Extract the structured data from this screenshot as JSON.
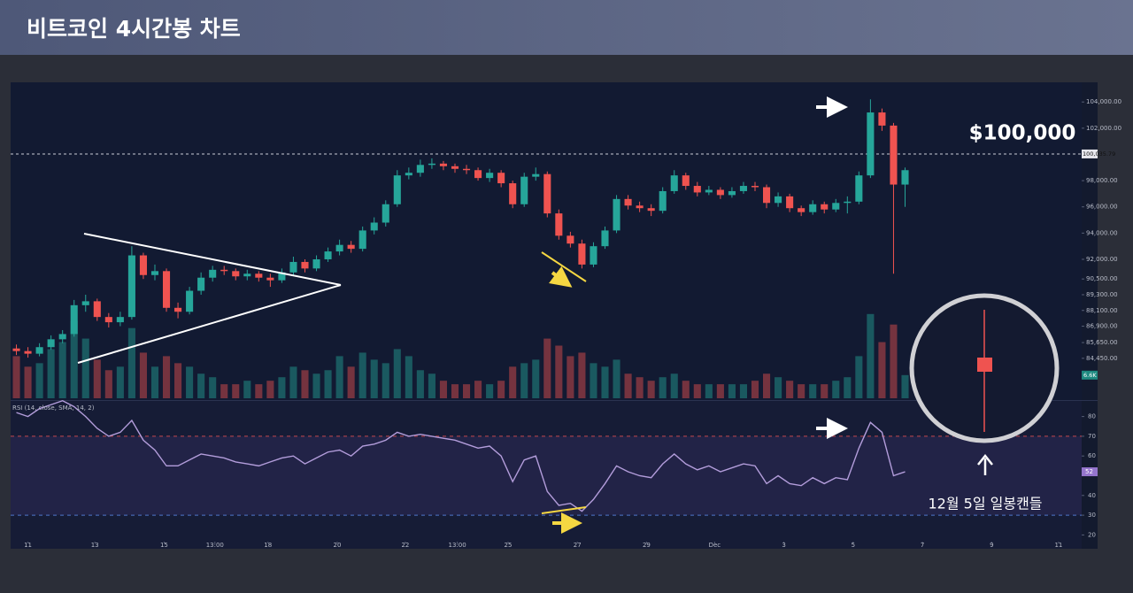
{
  "header": {
    "title": "비트코인 4시간봉 차트"
  },
  "chart_data": {
    "type": "candlestick",
    "xlim": [
      -0.5,
      92.3
    ],
    "xticks": [
      {
        "value": 1.0,
        "label": "11"
      },
      {
        "value": 6.8,
        "label": "13"
      },
      {
        "value": 12.8,
        "label": "15"
      },
      {
        "value": 17.2,
        "label": "13:00"
      },
      {
        "value": 21.8,
        "label": "18"
      },
      {
        "value": 27.8,
        "label": "20"
      },
      {
        "value": 33.7,
        "label": "22"
      },
      {
        "value": 38.2,
        "label": "13:00"
      },
      {
        "value": 42.6,
        "label": "25"
      },
      {
        "value": 48.6,
        "label": "27"
      },
      {
        "value": 54.6,
        "label": "29"
      },
      {
        "value": 60.5,
        "label": "Dec"
      },
      {
        "value": 66.5,
        "label": "3"
      },
      {
        "value": 72.5,
        "label": "5"
      },
      {
        "value": 78.5,
        "label": "7"
      },
      {
        "value": 84.5,
        "label": "9"
      },
      {
        "value": 90.3,
        "label": "11"
      }
    ],
    "ylim": [
      81400,
      105500
    ],
    "yticks": [
      {
        "value": 104000,
        "label": "104,000.00"
      },
      {
        "value": 102000,
        "label": "102,000.00"
      },
      {
        "value": 98000,
        "label": "98,000.00"
      },
      {
        "value": 96000,
        "label": "96,000.00"
      },
      {
        "value": 94000,
        "label": "94,000.00"
      },
      {
        "value": 92000,
        "label": "92,000.00"
      },
      {
        "value": 90500,
        "label": "90,500.00"
      },
      {
        "value": 89300,
        "label": "89,300.00"
      },
      {
        "value": 88100,
        "label": "88,100.00"
      },
      {
        "value": 86900,
        "label": "86,900.00"
      },
      {
        "value": 85650,
        "label": "85,650.00"
      },
      {
        "value": 84450,
        "label": "84,450.00"
      }
    ],
    "colors": {
      "up": "#26a69a",
      "down": "#ef5350"
    },
    "ohlc": [
      [
        85200,
        85500,
        84700,
        85000
      ],
      [
        85000,
        85300,
        84500,
        84800
      ],
      [
        84800,
        85600,
        84600,
        85300
      ],
      [
        85300,
        86200,
        85100,
        85900
      ],
      [
        85900,
        86600,
        85600,
        86300
      ],
      [
        86300,
        88900,
        86100,
        88500
      ],
      [
        88500,
        89300,
        88000,
        88800
      ],
      [
        88800,
        89000,
        87300,
        87600
      ],
      [
        87600,
        87900,
        86800,
        87200
      ],
      [
        87200,
        88000,
        86900,
        87600
      ],
      [
        87600,
        93000,
        87400,
        92300
      ],
      [
        92300,
        92500,
        90500,
        90800
      ],
      [
        90800,
        91600,
        90400,
        91100
      ],
      [
        91100,
        91300,
        88000,
        88300
      ],
      [
        88300,
        88700,
        87500,
        88000
      ],
      [
        88000,
        89900,
        87800,
        89600
      ],
      [
        89600,
        91000,
        89300,
        90600
      ],
      [
        90600,
        91500,
        90300,
        91200
      ],
      [
        91200,
        91500,
        90800,
        91100
      ],
      [
        91100,
        91300,
        90400,
        90700
      ],
      [
        90700,
        91200,
        90400,
        90900
      ],
      [
        90900,
        91100,
        90300,
        90600
      ],
      [
        90600,
        90900,
        89900,
        90400
      ],
      [
        90400,
        91300,
        90200,
        91000
      ],
      [
        91000,
        92200,
        90800,
        91800
      ],
      [
        91800,
        92000,
        91000,
        91300
      ],
      [
        91300,
        92300,
        91100,
        92000
      ],
      [
        92000,
        92900,
        91800,
        92600
      ],
      [
        92600,
        93500,
        92300,
        93100
      ],
      [
        93100,
        93400,
        92500,
        92800
      ],
      [
        92800,
        94500,
        92600,
        94200
      ],
      [
        94200,
        95200,
        93900,
        94800
      ],
      [
        94800,
        96500,
        94500,
        96200
      ],
      [
        96200,
        98800,
        96000,
        98400
      ],
      [
        98400,
        99000,
        98100,
        98600
      ],
      [
        98600,
        99600,
        98300,
        99200
      ],
      [
        99200,
        99700,
        98900,
        99300
      ],
      [
        99300,
        99500,
        98800,
        99100
      ],
      [
        99100,
        99300,
        98600,
        98900
      ],
      [
        98900,
        99200,
        98500,
        98800
      ],
      [
        98800,
        99000,
        98000,
        98200
      ],
      [
        98200,
        98900,
        97900,
        98600
      ],
      [
        98600,
        98800,
        97500,
        97800
      ],
      [
        97800,
        98000,
        95900,
        96200
      ],
      [
        96200,
        98600,
        96000,
        98300
      ],
      [
        98300,
        99000,
        98000,
        98500
      ],
      [
        98500,
        98700,
        95200,
        95500
      ],
      [
        95500,
        95800,
        93500,
        93800
      ],
      [
        93800,
        94100,
        92900,
        93200
      ],
      [
        93200,
        93500,
        91300,
        91600
      ],
      [
        91600,
        93300,
        91400,
        93000
      ],
      [
        93000,
        94500,
        92800,
        94200
      ],
      [
        94200,
        96900,
        94000,
        96600
      ],
      [
        96600,
        96900,
        95800,
        96100
      ],
      [
        96100,
        96400,
        95600,
        95900
      ],
      [
        95900,
        96200,
        95300,
        95700
      ],
      [
        95700,
        97500,
        95500,
        97200
      ],
      [
        97200,
        98800,
        97000,
        98400
      ],
      [
        98400,
        98600,
        97300,
        97600
      ],
      [
        97600,
        97900,
        96800,
        97100
      ],
      [
        97100,
        97600,
        96900,
        97300
      ],
      [
        97300,
        97500,
        96600,
        96900
      ],
      [
        96900,
        97500,
        96700,
        97200
      ],
      [
        97200,
        97900,
        97000,
        97600
      ],
      [
        97600,
        97900,
        97200,
        97500
      ],
      [
        97500,
        97700,
        95900,
        96300
      ],
      [
        96300,
        97100,
        96000,
        96800
      ],
      [
        96800,
        97000,
        95600,
        95900
      ],
      [
        95900,
        96100,
        95300,
        95600
      ],
      [
        95600,
        96500,
        95400,
        96200
      ],
      [
        96200,
        96400,
        95500,
        95800
      ],
      [
        95800,
        96600,
        95600,
        96300
      ],
      [
        96300,
        96800,
        95500,
        96400
      ],
      [
        96400,
        98700,
        96200,
        98400
      ],
      [
        98400,
        104200,
        98200,
        103200
      ],
      [
        103200,
        103500,
        101800,
        102200
      ],
      [
        102200,
        102400,
        90900,
        97700
      ],
      [
        97700,
        99000,
        96000,
        98800
      ]
    ],
    "price_line": {
      "value": 100035.79,
      "label": "100,035.79"
    },
    "annotations": [
      "$100,000",
      "12월 5일 일봉캔들"
    ],
    "volume": {
      "vlim": [
        0,
        90000
      ],
      "last_value_label": "6.6K",
      "values": [
        12000,
        9000,
        10000,
        14000,
        16000,
        22000,
        17000,
        11000,
        8000,
        9000,
        20000,
        13000,
        9000,
        12000,
        10000,
        9000,
        7000,
        6000,
        4000,
        4000,
        5000,
        4000,
        5000,
        6000,
        9000,
        8000,
        7000,
        8000,
        12000,
        9000,
        13000,
        11000,
        10000,
        14000,
        12000,
        8000,
        7000,
        5000,
        4000,
        4000,
        5000,
        4000,
        5000,
        9000,
        10000,
        11000,
        17000,
        15000,
        12000,
        13000,
        10000,
        9000,
        11000,
        7000,
        6000,
        5000,
        6000,
        7000,
        5000,
        4000,
        4000,
        4000,
        4000,
        4000,
        5000,
        7000,
        6000,
        5000,
        4000,
        4000,
        4000,
        5000,
        6000,
        12000,
        24000,
        16000,
        21000,
        6600
      ]
    },
    "rsi": {
      "title": "RSI (14, close, SMA, 14, 2)",
      "color": "#b39ddb",
      "ylim": [
        13,
        87
      ],
      "yticks": [
        80,
        70,
        60,
        40,
        30,
        20
      ],
      "upper": 70,
      "lower": 30,
      "values": [
        82,
        80,
        84,
        86,
        88,
        85,
        80,
        74,
        70,
        72,
        78,
        68,
        63,
        55,
        55,
        58,
        61,
        60,
        59,
        57,
        56,
        55,
        57,
        59,
        60,
        56,
        59,
        62,
        63,
        60,
        65,
        66,
        68,
        72,
        70,
        71,
        70,
        69,
        68,
        66,
        64,
        65,
        60,
        47,
        58,
        60,
        42,
        35,
        36,
        32,
        38,
        46,
        55,
        52,
        50,
        49,
        56,
        61,
        56,
        53,
        55,
        52,
        54,
        56,
        55,
        46,
        50,
        46,
        45,
        49,
        46,
        49,
        48,
        64,
        77,
        72,
        50,
        52
      ]
    }
  }
}
